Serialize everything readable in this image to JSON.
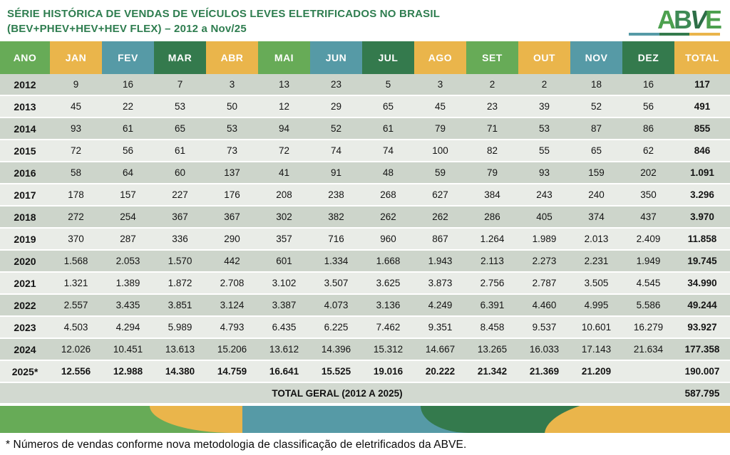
{
  "title": {
    "line1": "SÉRIE HISTÓRICA DE VENDAS DE VEÍCULOS LEVES ELETRIFICADOS NO BRASIL",
    "line2": "(BEV+PHEV+HEV+HEV FLEX) – 2012 a Nov/25"
  },
  "logo": {
    "text": "ABVE",
    "letters": [
      "A",
      "B",
      "V",
      "E"
    ]
  },
  "colors": {
    "green": "#67ab57",
    "yellow": "#eab54b",
    "teal": "#569aa6",
    "darkgreen": "#347a4d",
    "title_green": "#2e7d4f",
    "row_dark": "#cdd5cb",
    "row_light": "#e9ece7",
    "total_row_bg": "#d2d9d0"
  },
  "table": {
    "header_colors": [
      "green",
      "yellow",
      "teal",
      "darkgreen",
      "yellow",
      "green",
      "teal",
      "darkgreen",
      "yellow",
      "green",
      "yellow",
      "teal",
      "darkgreen",
      "yellow"
    ]
  },
  "chart_data": {
    "type": "table",
    "title": "SÉRIE HISTÓRICA DE VENDAS DE VEÍCULOS LEVES ELETRIFICADOS NO BRASIL (BEV+PHEV+HEV+HEV FLEX) – 2012 a Nov/25",
    "columns": [
      "ANO",
      "JAN",
      "FEV",
      "MAR",
      "ABR",
      "MAI",
      "JUN",
      "JUL",
      "AGO",
      "SET",
      "OUT",
      "NOV",
      "DEZ",
      "TOTAL"
    ],
    "rows": [
      {
        "ano": "2012",
        "values": [
          "9",
          "16",
          "7",
          "3",
          "13",
          "23",
          "5",
          "3",
          "2",
          "2",
          "18",
          "16"
        ],
        "total": "117",
        "bold_values": false
      },
      {
        "ano": "2013",
        "values": [
          "45",
          "22",
          "53",
          "50",
          "12",
          "29",
          "65",
          "45",
          "23",
          "39",
          "52",
          "56"
        ],
        "total": "491",
        "bold_values": false
      },
      {
        "ano": "2014",
        "values": [
          "93",
          "61",
          "65",
          "53",
          "94",
          "52",
          "61",
          "79",
          "71",
          "53",
          "87",
          "86"
        ],
        "total": "855",
        "bold_values": false
      },
      {
        "ano": "2015",
        "values": [
          "72",
          "56",
          "61",
          "73",
          "72",
          "74",
          "74",
          "100",
          "82",
          "55",
          "65",
          "62"
        ],
        "total": "846",
        "bold_values": false
      },
      {
        "ano": "2016",
        "values": [
          "58",
          "64",
          "60",
          "137",
          "41",
          "91",
          "48",
          "59",
          "79",
          "93",
          "159",
          "202"
        ],
        "total": "1.091",
        "bold_values": false
      },
      {
        "ano": "2017",
        "values": [
          "178",
          "157",
          "227",
          "176",
          "208",
          "238",
          "268",
          "627",
          "384",
          "243",
          "240",
          "350"
        ],
        "total": "3.296",
        "bold_values": false
      },
      {
        "ano": "2018",
        "values": [
          "272",
          "254",
          "367",
          "367",
          "302",
          "382",
          "262",
          "262",
          "286",
          "405",
          "374",
          "437"
        ],
        "total": "3.970",
        "bold_values": false
      },
      {
        "ano": "2019",
        "values": [
          "370",
          "287",
          "336",
          "290",
          "357",
          "716",
          "960",
          "867",
          "1.264",
          "1.989",
          "2.013",
          "2.409"
        ],
        "total": "11.858",
        "bold_values": false
      },
      {
        "ano": "2020",
        "values": [
          "1.568",
          "2.053",
          "1.570",
          "442",
          "601",
          "1.334",
          "1.668",
          "1.943",
          "2.113",
          "2.273",
          "2.231",
          "1.949"
        ],
        "total": "19.745",
        "bold_values": false
      },
      {
        "ano": "2021",
        "values": [
          "1.321",
          "1.389",
          "1.872",
          "2.708",
          "3.102",
          "3.507",
          "3.625",
          "3.873",
          "2.756",
          "2.787",
          "3.505",
          "4.545"
        ],
        "total": "34.990",
        "bold_values": false
      },
      {
        "ano": "2022",
        "values": [
          "2.557",
          "3.435",
          "3.851",
          "3.124",
          "3.387",
          "4.073",
          "3.136",
          "4.249",
          "6.391",
          "4.460",
          "4.995",
          "5.586"
        ],
        "total": "49.244",
        "bold_values": false
      },
      {
        "ano": "2023",
        "values": [
          "4.503",
          "4.294",
          "5.989",
          "4.793",
          "6.435",
          "6.225",
          "7.462",
          "9.351",
          "8.458",
          "9.537",
          "10.601",
          "16.279"
        ],
        "total": "93.927",
        "bold_values": false
      },
      {
        "ano": "2024",
        "values": [
          "12.026",
          "10.451",
          "13.613",
          "15.206",
          "13.612",
          "14.396",
          "15.312",
          "14.667",
          "13.265",
          "16.033",
          "17.143",
          "21.634"
        ],
        "total": "177.358",
        "bold_values": false
      },
      {
        "ano": "2025*",
        "values": [
          "12.556",
          "12.988",
          "14.380",
          "14.759",
          "16.641",
          "15.525",
          "19.016",
          "20.222",
          "21.342",
          "21.369",
          "21.209",
          ""
        ],
        "total": "190.007",
        "bold_values": true
      }
    ],
    "total_row": {
      "label": "TOTAL GERAL (2012 A 2025)",
      "value": "587.795"
    }
  },
  "footnote": "* Números de vendas conforme nova metodologia de classificação de eletrificados da ABVE."
}
